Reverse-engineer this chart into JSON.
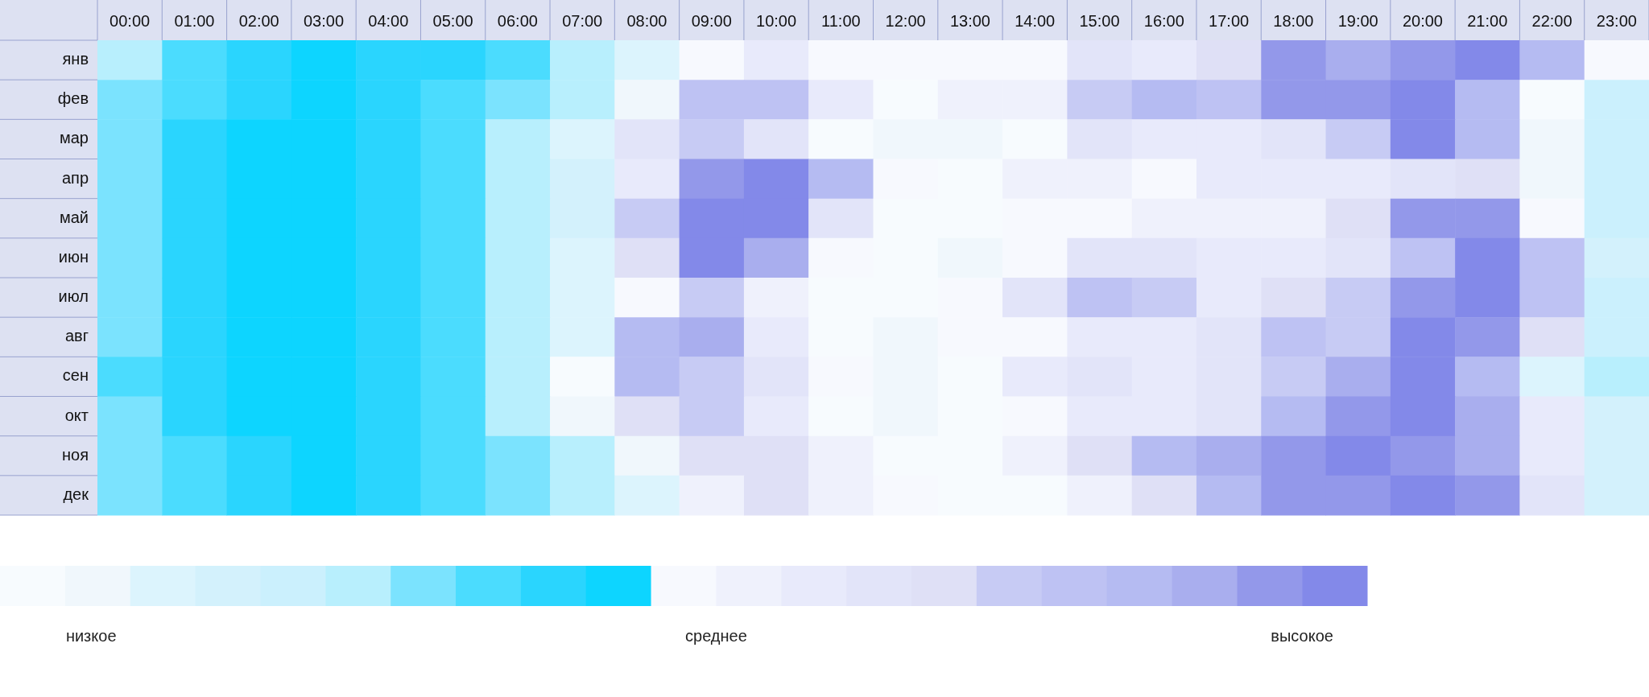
{
  "chart_data": {
    "type": "heatmap",
    "categories": [
      "00:00",
      "01:00",
      "02:00",
      "03:00",
      "04:00",
      "05:00",
      "06:00",
      "07:00",
      "08:00",
      "09:00",
      "10:00",
      "11:00",
      "12:00",
      "13:00",
      "14:00",
      "15:00",
      "16:00",
      "17:00",
      "18:00",
      "19:00",
      "20:00",
      "21:00",
      "22:00",
      "23:00"
    ],
    "y_categories": [
      "янв",
      "фев",
      "мар",
      "апр",
      "май",
      "июн",
      "июл",
      "авг",
      "сен",
      "окт",
      "ноя",
      "дек"
    ],
    "cells": [
      [
        5,
        7,
        8,
        9,
        8,
        8,
        7,
        5,
        2,
        10,
        12,
        10,
        10,
        10,
        10,
        13,
        12,
        14,
        19,
        18,
        19,
        20,
        17,
        10
      ],
      [
        6,
        7,
        8,
        9,
        8,
        7,
        6,
        5,
        1,
        16,
        16,
        12,
        0,
        11,
        11,
        15,
        17,
        16,
        19,
        19,
        20,
        17,
        0,
        4
      ],
      [
        6,
        8,
        9,
        9,
        8,
        7,
        5,
        2,
        13,
        15,
        13,
        0,
        1,
        1,
        0,
        13,
        12,
        12,
        13,
        15,
        20,
        17,
        1,
        4
      ],
      [
        6,
        8,
        9,
        9,
        8,
        7,
        5,
        3,
        12,
        19,
        20,
        17,
        10,
        0,
        11,
        11,
        10,
        12,
        12,
        12,
        13,
        14,
        1,
        4
      ],
      [
        6,
        8,
        9,
        9,
        8,
        7,
        5,
        3,
        15,
        20,
        20,
        13,
        0,
        0,
        10,
        10,
        11,
        11,
        11,
        14,
        19,
        19,
        10,
        4
      ],
      [
        6,
        8,
        9,
        9,
        8,
        7,
        5,
        2,
        14,
        20,
        18,
        10,
        0,
        1,
        10,
        13,
        13,
        12,
        12,
        13,
        16,
        20,
        16,
        3
      ],
      [
        6,
        8,
        9,
        9,
        8,
        7,
        5,
        2,
        10,
        15,
        11,
        0,
        0,
        10,
        13,
        16,
        15,
        12,
        14,
        15,
        19,
        20,
        16,
        4
      ],
      [
        6,
        8,
        9,
        9,
        8,
        7,
        5,
        2,
        17,
        18,
        12,
        0,
        1,
        10,
        10,
        12,
        12,
        13,
        16,
        15,
        20,
        19,
        14,
        4
      ],
      [
        7,
        8,
        9,
        9,
        8,
        7,
        5,
        0,
        17,
        15,
        13,
        10,
        1,
        0,
        12,
        13,
        12,
        13,
        15,
        18,
        20,
        17,
        2,
        5
      ],
      [
        6,
        8,
        9,
        9,
        8,
        7,
        5,
        1,
        14,
        15,
        12,
        0,
        1,
        0,
        10,
        12,
        12,
        13,
        17,
        19,
        20,
        18,
        12,
        3
      ],
      [
        6,
        7,
        8,
        9,
        8,
        7,
        6,
        5,
        1,
        14,
        14,
        11,
        0,
        0,
        11,
        14,
        17,
        18,
        19,
        20,
        19,
        18,
        12,
        3
      ],
      [
        6,
        7,
        8,
        9,
        8,
        7,
        6,
        5,
        2,
        11,
        14,
        11,
        10,
        0,
        0,
        11,
        14,
        17,
        19,
        19,
        20,
        19,
        13,
        3
      ]
    ],
    "colors": [
      "#f7fbfe",
      "#f0f7fc",
      "#dcf4fd",
      "#d3f1fc",
      "#cbf0fd",
      "#b8effd",
      "#7be3fe",
      "#4bdcfe",
      "#2ad5fe",
      "#0dd5ff",
      "#f7f9fe",
      "#eff1fc",
      "#e8eafb",
      "#e2e4f9",
      "#dfe0f6",
      "#c7cbf4",
      "#bec2f3",
      "#b5bbf2",
      "#a9aeee",
      "#9398ea",
      "#8389e9"
    ],
    "clim": [
      0,
      21
    ],
    "cticks": [
      {
        "value": 1.4,
        "label": "низкое"
      },
      {
        "value": 11,
        "label": "среднее"
      },
      {
        "value": 20,
        "label": "высокое"
      }
    ]
  }
}
